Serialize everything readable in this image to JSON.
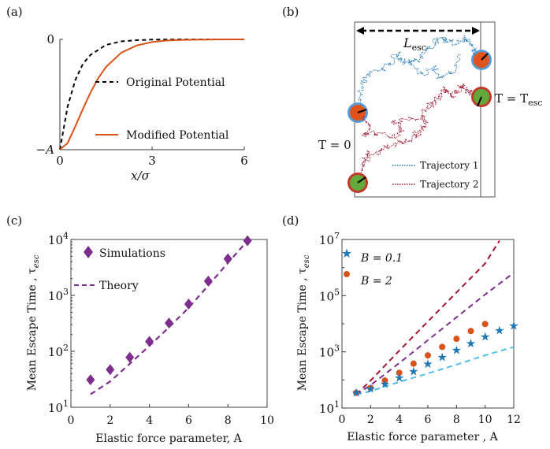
{
  "panels": {
    "a": {
      "label": "(a)"
    },
    "b": {
      "label": "(b)"
    },
    "c": {
      "label": "(c)"
    },
    "d": {
      "label": "(d)"
    }
  },
  "chart_data": [
    {
      "id": "a",
      "type": "line",
      "xlabel": "x/σ",
      "ylabel": "",
      "xlim": [
        0,
        6
      ],
      "ylim": [
        -1,
        0
      ],
      "xticks": [
        "0",
        "3",
        "6"
      ],
      "yticks": [
        "−A",
        "0"
      ],
      "legend": "center-right",
      "series": [
        {
          "name": "Original Potential",
          "style": "dashed",
          "color": "#000000",
          "x": [
            0,
            0.25,
            0.5,
            0.75,
            1,
            1.5,
            2,
            2.5,
            3,
            4,
            5,
            6
          ],
          "y": [
            -1,
            -0.61,
            -0.37,
            -0.22,
            -0.14,
            -0.05,
            -0.018,
            -0.007,
            -0.002,
            -0.0003,
            0,
            0
          ]
        },
        {
          "name": "Modified Potential",
          "style": "solid",
          "color": "#d95319",
          "x": [
            0,
            0.25,
            0.5,
            0.75,
            1,
            1.25,
            1.5,
            2,
            2.5,
            3,
            3.5,
            4,
            5,
            6
          ],
          "y": [
            -1,
            -0.94,
            -0.79,
            -0.63,
            -0.48,
            -0.35,
            -0.25,
            -0.12,
            -0.055,
            -0.024,
            -0.01,
            -0.004,
            -0.001,
            0
          ]
        }
      ]
    },
    {
      "id": "c",
      "type": "scatter",
      "xlabel": "Elastic force parameter, A",
      "ylabel": "Mean Escape Time , τ",
      "ylabel_sub": "esc",
      "yscale": "log",
      "xlim": [
        0,
        10
      ],
      "ylim": [
        10,
        10000
      ],
      "xticks": [
        "0",
        "2",
        "4",
        "6",
        "8",
        "10"
      ],
      "yticks": [
        {
          "base": "10",
          "exp": "1"
        },
        {
          "base": "10",
          "exp": "2"
        },
        {
          "base": "10",
          "exp": "3"
        },
        {
          "base": "10",
          "exp": "4"
        }
      ],
      "legend": "top-left",
      "series": [
        {
          "name": "Simulations",
          "marker": "diamond",
          "color": "#7e2f8e",
          "x": [
            1,
            2,
            3,
            4,
            5,
            6,
            7,
            8,
            9
          ],
          "y": [
            31,
            47,
            78,
            150,
            320,
            700,
            1800,
            4500,
            9500
          ]
        },
        {
          "name": "Theory",
          "style": "dashed",
          "color": "#7e2f8e",
          "x": [
            1,
            2,
            3,
            4,
            5,
            6,
            7,
            8,
            9
          ],
          "y": [
            17,
            29,
            60,
            125,
            270,
            600,
            1500,
            3800,
            9500
          ]
        }
      ]
    },
    {
      "id": "d",
      "type": "scatter",
      "xlabel": "Elastic force parameter , A",
      "ylabel": "Mean Escape Time , τ",
      "ylabel_sub": "esc",
      "yscale": "log",
      "xlim": [
        0,
        12
      ],
      "ylim": [
        10,
        10000000
      ],
      "xticks": [
        "0",
        "2",
        "4",
        "6",
        "8",
        "10",
        "12"
      ],
      "yticks": [
        {
          "base": "10",
          "exp": "1"
        },
        {
          "base": "10",
          "exp": "3"
        },
        {
          "base": "10",
          "exp": "5"
        },
        {
          "base": "10",
          "exp": "7"
        }
      ],
      "legend": "top-left",
      "series": [
        {
          "name": "B = 0.1",
          "marker": "star",
          "color": "#1f77b4",
          "x": [
            1,
            2,
            3,
            4,
            5,
            6,
            7,
            8,
            9,
            10,
            11,
            12
          ],
          "y": [
            35,
            48,
            72,
            120,
            200,
            370,
            650,
            1150,
            2000,
            3500,
            5800,
            8600
          ]
        },
        {
          "name": "B = 2",
          "marker": "circle",
          "color": "#d95319",
          "x": [
            1,
            2,
            3,
            4,
            5,
            6,
            7,
            8,
            9,
            10
          ],
          "y": [
            35,
            52,
            95,
            180,
            380,
            750,
            1500,
            2900,
            5500,
            9800
          ]
        },
        {
          "name": "dashed-high",
          "style": "dashed",
          "color": "#a2142f",
          "x": [
            1,
            2,
            4,
            6,
            8,
            10,
            11
          ],
          "y": [
            30,
            95,
            1100,
            12000,
            130000,
            1400000,
            9000000
          ]
        },
        {
          "name": "dashed-mid",
          "style": "dashed",
          "color": "#7e2f8e",
          "x": [
            1,
            2,
            4,
            6,
            8,
            10,
            12
          ],
          "y": [
            30,
            65,
            400,
            2600,
            17000,
            110000,
            650000
          ]
        },
        {
          "name": "dashed-low",
          "style": "dashed",
          "color": "#4dbeee",
          "x": [
            1,
            2,
            4,
            6,
            8,
            10,
            12
          ],
          "y": [
            30,
            40,
            85,
            170,
            350,
            750,
            1500
          ]
        }
      ]
    }
  ],
  "schematic": {
    "length_label": "L",
    "length_sub": "esc",
    "t0_label": "T = 0",
    "tesc_label": "T = T",
    "tesc_sub": "esc",
    "legend": [
      {
        "name": "Trajectory 1",
        "color": "#1f77b4"
      },
      {
        "name": "Trajectory 2",
        "color": "#a2142f"
      }
    ],
    "particle_colors": {
      "outer_blue": "#5b9bd5",
      "outer_red": "#c0392b",
      "inner_orange": "#e0531b",
      "inner_green": "#62a83a"
    }
  }
}
